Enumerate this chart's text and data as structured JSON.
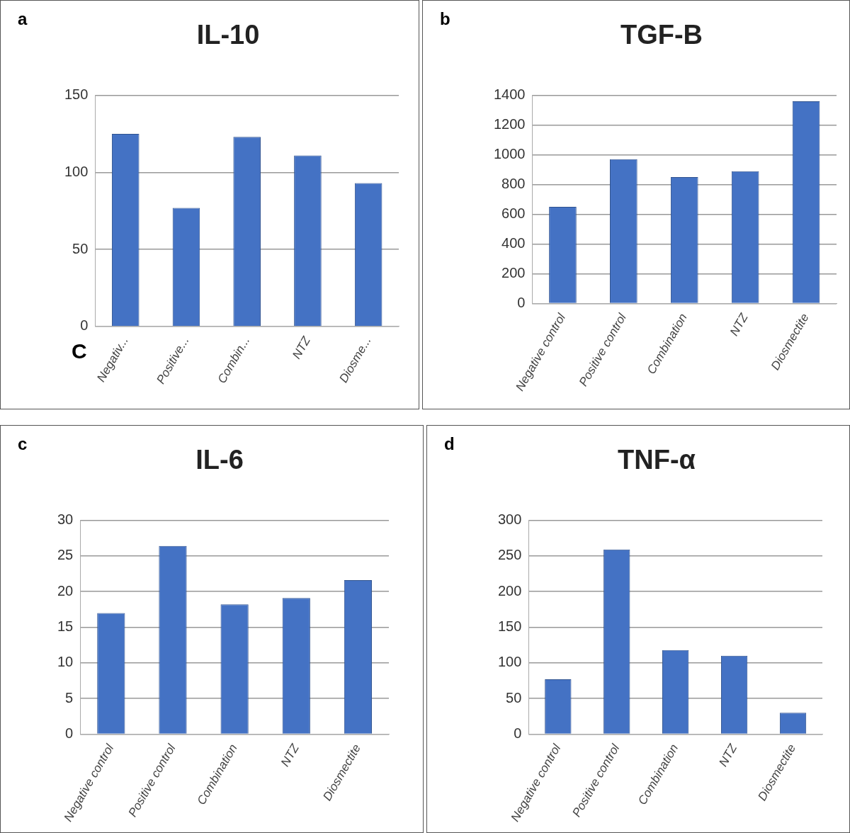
{
  "chart_data": [
    {
      "type": "bar",
      "title": "IL-10",
      "categories": [
        "Negativ...",
        "Positive...",
        "Combin...",
        "NTZ",
        "Diosme..."
      ],
      "values": [
        125,
        77,
        123,
        111,
        93
      ],
      "color": "#4472c4",
      "ylim": [
        0,
        150
      ],
      "yticks": [
        0,
        50,
        100,
        150
      ],
      "grid": "y",
      "annotations": [
        "a",
        "C"
      ]
    },
    {
      "type": "bar",
      "title": "TGF-B",
      "categories": [
        "Negative control",
        "Positive control",
        "Combination",
        "NTZ",
        "Diosmectite"
      ],
      "values": [
        650,
        970,
        850,
        890,
        1360
      ],
      "color": "#4472c4",
      "ylim": [
        0,
        1400
      ],
      "yticks": [
        0,
        200,
        400,
        600,
        800,
        1000,
        1200,
        1400
      ],
      "grid": "y",
      "annotations": [
        "b"
      ]
    },
    {
      "type": "bar",
      "title": "IL-6",
      "categories": [
        "Negative control",
        "Positive control",
        "Combination",
        "NTZ",
        "Diosmectite"
      ],
      "values": [
        17,
        26.4,
        18.2,
        19.1,
        21.6
      ],
      "color": "#4472c4",
      "ylim": [
        0,
        30
      ],
      "yticks": [
        0,
        5,
        10,
        15,
        20,
        25,
        30
      ],
      "grid": "y",
      "annotations": [
        "c"
      ]
    },
    {
      "type": "bar",
      "title": "TNF-α",
      "categories": [
        "Negative control",
        "Positive control",
        "Combination",
        "NTZ",
        "Diosmectite"
      ],
      "values": [
        77,
        259,
        118,
        110,
        30
      ],
      "color": "#4472c4",
      "ylim": [
        0,
        300
      ],
      "yticks": [
        0,
        50,
        100,
        150,
        200,
        250,
        300
      ],
      "grid": "y",
      "annotations": [
        "d"
      ]
    }
  ]
}
